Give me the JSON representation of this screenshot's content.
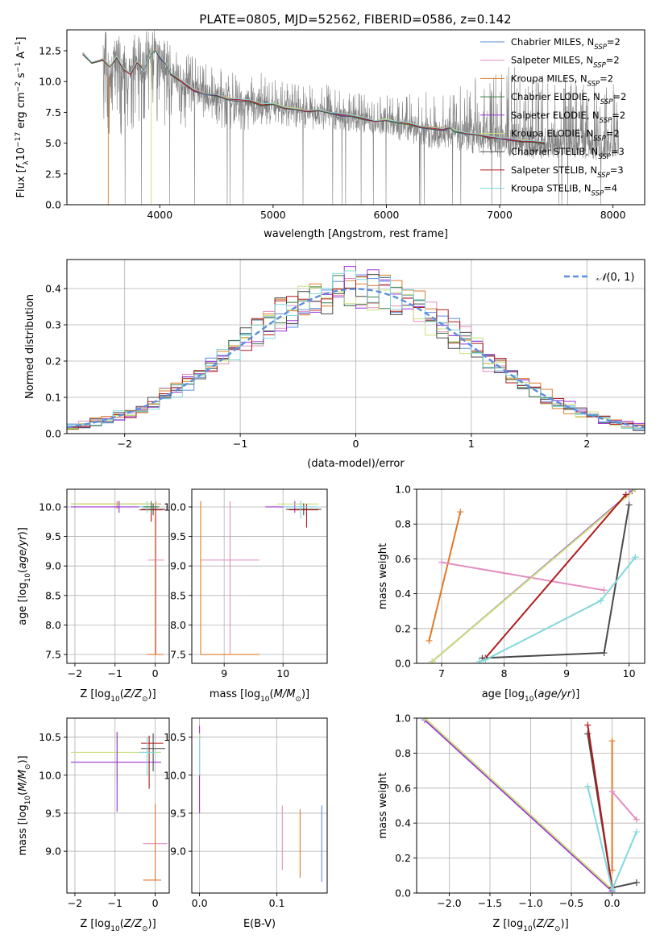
{
  "figure": {
    "title": "PLATE=0805, MJD=52562, FIBERID=0586, z=0.142"
  },
  "series_styles": [
    {
      "name": "Chabrier MILES, N_SSP=2",
      "label_main": "Chabrier MILES, N",
      "label_sub": "SSP",
      "label_tail": "=2",
      "color": "#5b8ee0"
    },
    {
      "name": "Salpeter MILES, N_SSP=2",
      "label_main": "Salpeter MILES, N",
      "label_sub": "SSP",
      "label_tail": "=2",
      "color": "#e48bbf"
    },
    {
      "name": "Kroupa MILES, N_SSP=2",
      "label_main": "Kroupa MILES, N",
      "label_sub": "SSP",
      "label_tail": "=2",
      "color": "#e07a28"
    },
    {
      "name": "Chabrier ELODIE, N_SSP=2",
      "label_main": "Chabrier ELODIE, N",
      "label_sub": "SSP",
      "label_tail": "=2",
      "color": "#3a7d44"
    },
    {
      "name": "Salpeter ELODIE, N_SSP=2",
      "label_main": "Salpeter ELODIE, N",
      "label_sub": "SSP",
      "label_tail": "=2",
      "color": "#9b30d9"
    },
    {
      "name": "Kroupa ELODIE, N_SSP=2",
      "label_main": "Kroupa ELODIE, N",
      "label_sub": "SSP",
      "label_tail": "=2",
      "color": "#c8e07a"
    },
    {
      "name": "Chabrier STELIB, N_SSP=3",
      "label_main": "Chabrier STELIB, N",
      "label_sub": "SSP",
      "label_tail": "=3",
      "color": "#4a4a4a"
    },
    {
      "name": "Salpeter STELIB, N_SSP=3",
      "label_main": "Salpeter STELIB, N",
      "label_sub": "SSP",
      "label_tail": "=3",
      "color": "#b01c1c"
    },
    {
      "name": "Kroupa STELIB, N_SSP=4",
      "label_main": "Kroupa STELIB, N",
      "label_sub": "SSP",
      "label_tail": "=4",
      "color": "#7fd8dc"
    }
  ],
  "chart_data": [
    {
      "id": "spectrum",
      "type": "line",
      "xlabel": "wavelength [Angstrom, rest frame]",
      "ylabel": "Flux [f_λ 10^-17 erg cm^-2 s^-1 A^-1]",
      "ylabel_parts": {
        "pre": "Flux [",
        "f": "f",
        "fsub": "λ",
        "mid": "10",
        "exp1": "−17",
        "unit": " erg cm",
        "exp2": "−2",
        "s": " s",
        "exp3": "−1",
        "A": " A",
        "exp4": "−1",
        "post": "]"
      },
      "xlim": [
        3180,
        8280
      ],
      "ylim": [
        0,
        14.2
      ],
      "xticks": [
        4000,
        5000,
        6000,
        7000,
        8000
      ],
      "yticks": [
        0.0,
        2.5,
        5.0,
        7.5,
        10.0,
        12.5
      ],
      "ytick_labels": [
        "0.0",
        "2.5",
        "5.0",
        "7.5",
        "10.0",
        "12.5"
      ],
      "grid": false,
      "legend": "top-right",
      "data_color": "#808080",
      "model_continuum": {
        "x": [
          3320,
          3400,
          3500,
          3560,
          3620,
          3680,
          3740,
          3800,
          3860,
          3920,
          3960,
          4000,
          4060,
          4100,
          4200,
          4300,
          4400,
          4500,
          4600,
          4700,
          4800,
          4900,
          5000,
          5100,
          5200,
          5300,
          5400,
          5500,
          5600,
          5700,
          5800,
          5900,
          6000,
          6100,
          6200,
          6300,
          6400,
          6500,
          6560,
          6600,
          6700,
          6800,
          6900,
          7000,
          7100,
          7200,
          7300,
          7400
        ],
        "y": [
          12.3,
          11.5,
          11.8,
          11.2,
          12.0,
          11.0,
          10.6,
          11.6,
          11.0,
          12.2,
          12.6,
          12.0,
          11.4,
          10.6,
          10.0,
          9.3,
          9.0,
          8.9,
          8.6,
          8.5,
          8.4,
          8.1,
          8.2,
          7.9,
          7.8,
          7.6,
          7.7,
          7.5,
          7.3,
          7.2,
          7.0,
          6.8,
          6.9,
          6.7,
          6.6,
          6.3,
          6.2,
          6.1,
          6.3,
          6.0,
          5.8,
          5.7,
          5.5,
          5.4,
          5.3,
          5.2,
          5.1,
          5.0
        ]
      },
      "spectrum_band": {
        "x": [
          3500,
          3600,
          3700,
          3800,
          3900,
          4000,
          4200,
          4400,
          4600,
          4800,
          5000,
          5200,
          5400,
          5600,
          5800,
          6000,
          6200,
          6400,
          6600,
          6800,
          7000,
          7200,
          7400,
          7600,
          7800,
          8000
        ],
        "lo": [
          4.5,
          6.0,
          5.0,
          6.5,
          6.0,
          6.5,
          6.0,
          6.5,
          6.0,
          6.0,
          6.5,
          6.2,
          6.0,
          6.0,
          5.8,
          5.5,
          5.0,
          4.5,
          4.5,
          4.0,
          3.8,
          3.8,
          3.5,
          3.8,
          3.5,
          3.5
        ],
        "hi": [
          14.2,
          14.2,
          14.2,
          14.2,
          14.2,
          14.2,
          12.5,
          11.5,
          11.0,
          11.0,
          10.5,
          10.0,
          10.0,
          9.5,
          9.0,
          9.0,
          9.0,
          9.5,
          9.5,
          10.5,
          11.0,
          11.5,
          10.5,
          10.5,
          10.0,
          10.0
        ]
      }
    },
    {
      "id": "residuals",
      "type": "line",
      "xlabel": "(data-model)/error",
      "ylabel": "Normed distribution",
      "xlim": [
        -2.5,
        2.5
      ],
      "ylim": [
        0,
        0.48
      ],
      "xticks": [
        -2,
        -1,
        0,
        1,
        2
      ],
      "xtick_labels": [
        "−2",
        "−1",
        "0",
        "1",
        "2"
      ],
      "yticks": [
        0.0,
        0.1,
        0.2,
        0.3,
        0.4
      ],
      "ytick_labels": [
        "0.0",
        "0.1",
        "0.2",
        "0.3",
        "0.4"
      ],
      "grid": true,
      "legend": "top-right",
      "legend_label": "N(0,1)",
      "legend_label_parts": {
        "calN": "𝒩",
        "args": "(0, 1)"
      },
      "gaussian_color": "#5b8ee0",
      "bin_width": 0.1,
      "histograms_bin_start": -2.5
    },
    {
      "id": "age_vs_Z",
      "type": "scatter",
      "xlabel": "Z [log10(Z/Z⊙)]",
      "ylabel": "age [log10(age/yr)]",
      "xlim": [
        -2.2,
        0.35
      ],
      "ylim": [
        7.35,
        10.3
      ],
      "xticks": [
        -2,
        -1,
        0
      ],
      "xtick_labels": [
        "−2",
        "−1",
        "0"
      ],
      "yticks": [
        7.5,
        8.0,
        8.5,
        9.0,
        9.5,
        10.0
      ],
      "ytick_labels": [
        "7.5",
        "8.0",
        "8.5",
        "9.0",
        "9.5",
        "10.0"
      ],
      "grid": true,
      "errorbars": [
        {
          "color": "#e07a28",
          "x": -0.95,
          "y": 10.05,
          "xerr": [
            1.15,
            1.1
          ],
          "yerr": [
            0.08,
            0.05
          ]
        },
        {
          "color": "#c8e07a",
          "x": -0.9,
          "y": 10.05,
          "xerr": [
            1.2,
            1.0
          ],
          "yerr": [
            0.1,
            0.05
          ]
        },
        {
          "color": "#9b30d9",
          "x": -0.9,
          "y": 10.0,
          "xerr": [
            1.2,
            1.0
          ],
          "yerr": [
            0.1,
            0.1
          ]
        },
        {
          "color": "#e48bbf",
          "x": 0.02,
          "y": 9.1,
          "xerr": [
            0.2,
            0.2
          ],
          "yerr": [
            1.6,
            1.0
          ]
        },
        {
          "color": "#e07a28",
          "x": 0.0,
          "y": 7.5,
          "xerr": [
            0.2,
            0.2
          ],
          "yerr": [
            0.0,
            2.5
          ]
        },
        {
          "color": "#4a4a4a",
          "x": -0.05,
          "y": 9.96,
          "xerr": [
            0.3,
            0.3
          ],
          "yerr": [
            0.1,
            0.1
          ]
        },
        {
          "color": "#b01c1c",
          "x": -0.1,
          "y": 9.95,
          "xerr": [
            0.3,
            0.3
          ],
          "yerr": [
            0.2,
            0.1
          ]
        },
        {
          "color": "#7fd8dc",
          "x": -0.2,
          "y": 10.0,
          "xerr": [
            0.2,
            0.2
          ],
          "yerr": [
            0.1,
            0.1
          ]
        },
        {
          "color": "#3a7d44",
          "x": -0.1,
          "y": 10.0,
          "xerr": [
            0.2,
            0.2
          ],
          "yerr": [
            0.1,
            0.1
          ]
        }
      ]
    },
    {
      "id": "age_vs_mass",
      "type": "scatter",
      "xlabel": "mass [log10(M/M⊙)]",
      "ylabel": "",
      "xlim": [
        8.45,
        10.75
      ],
      "ylim": [
        7.35,
        10.3
      ],
      "xticks": [
        9,
        10
      ],
      "xtick_labels": [
        "9",
        "10"
      ],
      "yticks": [
        7.5,
        8.0,
        8.5,
        9.0,
        9.5,
        10.0
      ],
      "ytick_labels": [
        "7.5",
        "8.0",
        "8.5",
        "9.0",
        "9.5",
        "10.0"
      ],
      "grid": true,
      "errorbars": [
        {
          "color": "#e48bbf",
          "x": 9.1,
          "y": 9.1,
          "xerr": [
            0.5,
            0.5
          ],
          "yerr": [
            1.6,
            1.0
          ]
        },
        {
          "color": "#e07a28",
          "x": 8.6,
          "y": 7.5,
          "xerr": [
            0.0,
            1.0
          ],
          "yerr": [
            0.0,
            2.6
          ]
        },
        {
          "color": "#9b30d9",
          "x": 10.2,
          "y": 10.0,
          "xerr": [
            0.5,
            0.2
          ],
          "yerr": [
            0.1,
            0.1
          ]
        },
        {
          "color": "#c8e07a",
          "x": 10.3,
          "y": 10.05,
          "xerr": [
            0.4,
            0.3
          ],
          "yerr": [
            0.1,
            0.05
          ]
        },
        {
          "color": "#4a4a4a",
          "x": 10.35,
          "y": 9.96,
          "xerr": [
            0.3,
            0.3
          ],
          "yerr": [
            0.1,
            0.1
          ]
        },
        {
          "color": "#b01c1c",
          "x": 10.4,
          "y": 9.95,
          "xerr": [
            0.3,
            0.2
          ],
          "yerr": [
            0.3,
            0.1
          ]
        },
        {
          "color": "#7fd8dc",
          "x": 10.3,
          "y": 10.0,
          "xerr": [
            0.3,
            0.3
          ],
          "yerr": [
            0.2,
            0.1
          ]
        }
      ]
    },
    {
      "id": "weight_vs_age",
      "type": "line",
      "xlabel": "age [log10(age/yr)]",
      "ylabel": "mass weight",
      "xlim": [
        6.6,
        10.25
      ],
      "ylim": [
        0,
        1.0
      ],
      "xticks": [
        7,
        8,
        9,
        10
      ],
      "xtick_labels": [
        "7",
        "8",
        "9",
        "10"
      ],
      "yticks": [
        0.0,
        0.2,
        0.4,
        0.6,
        0.8,
        1.0
      ],
      "ytick_labels": [
        "0.0",
        "0.2",
        "0.4",
        "0.6",
        "0.8",
        "1.0"
      ],
      "grid": true,
      "series": [
        {
          "color": "#e07a28",
          "x": [
            6.8,
            7.3
          ],
          "y": [
            0.13,
            0.87
          ]
        },
        {
          "color": "#e48bbf",
          "x": [
            7.0,
            9.6
          ],
          "y": [
            0.58,
            0.42
          ]
        },
        {
          "color": "#9b30d9",
          "x": [
            6.85,
            10.05
          ],
          "y": [
            0.01,
            0.99
          ]
        },
        {
          "color": "#c8e07a",
          "x": [
            6.85,
            10.1
          ],
          "y": [
            0.01,
            1.0
          ]
        },
        {
          "color": "#4a4a4a",
          "x": [
            7.65,
            9.6,
            10.0
          ],
          "y": [
            0.03,
            0.06,
            0.91
          ]
        },
        {
          "color": "#b01c1c",
          "x": [
            7.7,
            9.95
          ],
          "y": [
            0.03,
            0.97
          ]
        },
        {
          "color": "#7fd8dc",
          "x": [
            7.6,
            7.7,
            9.55,
            10.1
          ],
          "y": [
            0.01,
            0.02,
            0.36,
            0.61
          ]
        }
      ]
    },
    {
      "id": "mass_vs_Z",
      "type": "scatter",
      "xlabel": "Z [log10(Z/Z⊙)]",
      "ylabel": "mass [log10(M/M⊙)]",
      "xlim": [
        -2.2,
        0.35
      ],
      "ylim": [
        8.45,
        10.75
      ],
      "xticks": [
        -2,
        -1,
        0
      ],
      "xtick_labels": [
        "−2",
        "−1",
        "0"
      ],
      "yticks": [
        9.0,
        9.5,
        10.0,
        10.5
      ],
      "ytick_labels": [
        "9.0",
        "9.5",
        "10.0",
        "10.5"
      ],
      "grid": true,
      "errorbars": [
        {
          "color": "#c8e07a",
          "x": -0.95,
          "y": 10.3,
          "xerr": [
            1.15,
            1.1
          ],
          "yerr": [
            0.4,
            0.25
          ]
        },
        {
          "color": "#9b30d9",
          "x": -0.95,
          "y": 10.17,
          "xerr": [
            1.15,
            1.1
          ],
          "yerr": [
            0.65,
            0.4
          ]
        },
        {
          "color": "#4a4a4a",
          "x": -0.05,
          "y": 10.35,
          "xerr": [
            0.3,
            0.3
          ],
          "yerr": [
            0.3,
            0.2
          ]
        },
        {
          "color": "#b01c1c",
          "x": -0.15,
          "y": 10.42,
          "xerr": [
            0.2,
            0.35
          ],
          "yerr": [
            0.6,
            0.1
          ]
        },
        {
          "color": "#7fd8dc",
          "x": -0.2,
          "y": 10.3,
          "xerr": [
            0.2,
            0.2
          ],
          "yerr": [
            0.3,
            0.2
          ]
        },
        {
          "color": "#e48bbf",
          "x": 0.0,
          "y": 9.1,
          "xerr": [
            0.3,
            0.3
          ],
          "yerr": [
            0.5,
            0.5
          ]
        },
        {
          "color": "#e07a28",
          "x": 0.0,
          "y": 8.62,
          "xerr": [
            0.3,
            0.15
          ],
          "yerr": [
            0.0,
            1.0
          ]
        }
      ]
    },
    {
      "id": "mass_vs_EBV",
      "type": "scatter",
      "xlabel": "E(B-V)",
      "ylabel": "",
      "xlim": [
        -0.01,
        0.165
      ],
      "ylim": [
        8.45,
        10.75
      ],
      "xticks": [
        0.0,
        0.1
      ],
      "xtick_labels": [
        "0.0",
        "0.1"
      ],
      "yticks": [
        9.0,
        9.5,
        10.0,
        10.5
      ],
      "ytick_labels": [
        "9.0",
        "9.5",
        "10.0",
        "10.5"
      ],
      "grid": true,
      "errorbars": [
        {
          "color": "#9b30d9",
          "x": 0.0,
          "y": 10.1,
          "xerr": [
            0,
            0
          ],
          "yerr": [
            0.6,
            0.55
          ]
        },
        {
          "color": "#c8e07a",
          "x": 0.0,
          "y": 10.3,
          "xerr": [
            0,
            0
          ],
          "yerr": [
            0.3,
            0.25
          ]
        },
        {
          "color": "#7fd8dc",
          "x": 0.0,
          "y": 10.3,
          "xerr": [
            0,
            0
          ],
          "yerr": [
            0.3,
            0.2
          ]
        },
        {
          "color": "#e48bbf",
          "x": 0.107,
          "y": 9.2,
          "xerr": [
            0,
            0
          ],
          "yerr": [
            0.45,
            0.4
          ]
        },
        {
          "color": "#e07a28",
          "x": 0.13,
          "y": 9.2,
          "xerr": [
            0,
            0
          ],
          "yerr": [
            0.55,
            0.35
          ]
        },
        {
          "color": "#5b8ee0",
          "x": 0.158,
          "y": 9.2,
          "xerr": [
            0,
            0
          ],
          "yerr": [
            0.6,
            0.4
          ]
        }
      ]
    },
    {
      "id": "weight_vs_Z",
      "type": "line",
      "xlabel": "Z [log10(Z/Z⊙)]",
      "ylabel": "mass weight",
      "xlim": [
        -2.4,
        0.4
      ],
      "ylim": [
        0,
        1.0
      ],
      "xticks": [
        -2.0,
        -1.5,
        -1.0,
        -0.5,
        0.0
      ],
      "xtick_labels": [
        "−2.0",
        "−1.5",
        "−1.0",
        "−0.5",
        "0.0"
      ],
      "yticks": [
        0.0,
        0.2,
        0.4,
        0.6,
        0.8,
        1.0
      ],
      "ytick_labels": [
        "0.0",
        "0.2",
        "0.4",
        "0.6",
        "0.8",
        "1.0"
      ],
      "grid": true,
      "series": [
        {
          "color": "#9b30d9",
          "x": [
            -2.3,
            0.0
          ],
          "y": [
            0.99,
            0.01
          ]
        },
        {
          "color": "#c8e07a",
          "x": [
            -2.3,
            0.0
          ],
          "y": [
            1.0,
            0.02
          ]
        },
        {
          "color": "#e07a28",
          "x": [
            0.0,
            0.0
          ],
          "y": [
            0.13,
            0.87
          ]
        },
        {
          "color": "#e48bbf",
          "x": [
            0.0,
            0.3
          ],
          "y": [
            0.58,
            0.42
          ]
        },
        {
          "color": "#4a4a4a",
          "x": [
            -0.3,
            0.0,
            0.3
          ],
          "y": [
            0.91,
            0.03,
            0.06
          ]
        },
        {
          "color": "#b01c1c",
          "x": [
            -0.3,
            0.0
          ],
          "y": [
            0.96,
            0.03
          ]
        },
        {
          "color": "#7fd8dc",
          "x": [
            -0.3,
            0.0,
            0.3
          ],
          "y": [
            0.61,
            0.02,
            0.35
          ]
        }
      ]
    }
  ]
}
